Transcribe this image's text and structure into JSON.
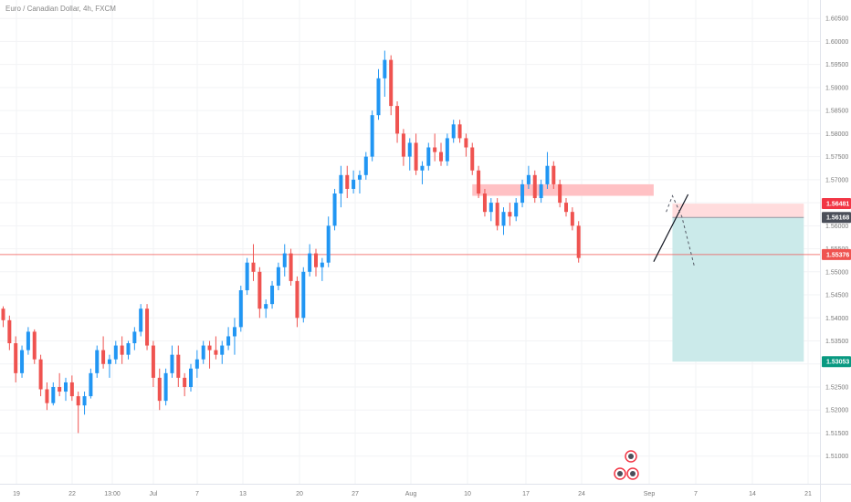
{
  "header": {
    "title": "Euro / Canadian Dollar, 4h, FXCM"
  },
  "colors": {
    "up": "#2196f3",
    "down": "#ef5350",
    "resistance_zone": "#ffc1c4",
    "stop_zone": "#ffdcdd",
    "target_zone": "#cbeaea",
    "support_line": "#ef5350",
    "badge_red": "#f23645",
    "badge_gray": "#4a4e59",
    "badge_teal": "#089981"
  },
  "chart_data": {
    "type": "candlestick",
    "title": "Euro / Canadian Dollar, 4h, FXCM",
    "xlabel": "",
    "ylabel": "",
    "ylim": [
      1.504,
      1.609
    ],
    "y_ticks": [
      "1.60500",
      "1.60000",
      "1.59500",
      "1.59000",
      "1.58500",
      "1.58000",
      "1.57500",
      "1.57000",
      "1.56500",
      "1.56000",
      "1.55500",
      "1.55000",
      "1.54500",
      "1.54000",
      "1.53500",
      "1.53000",
      "1.52500",
      "1.52000",
      "1.51500",
      "1.51000"
    ],
    "x_ticks": [
      "19",
      "22",
      "13:00",
      "Jul",
      "7",
      "13",
      "20",
      "27",
      "Aug",
      "10",
      "17",
      "24",
      "Sep",
      "7",
      "14",
      "21"
    ],
    "price_labels": [
      "1.56481",
      "1.56168",
      "1.55376",
      "1.53053"
    ],
    "series": [
      {
        "values": [
          [
            1.542,
            1.5425,
            1.538,
            1.5395
          ],
          [
            1.5395,
            1.5405,
            1.533,
            1.5345
          ],
          [
            1.5345,
            1.536,
            1.526,
            1.528
          ],
          [
            1.528,
            1.534,
            1.527,
            1.533
          ],
          [
            1.533,
            1.538,
            1.532,
            1.537
          ],
          [
            1.537,
            1.5375,
            1.53,
            1.531
          ],
          [
            1.531,
            1.532,
            1.523,
            1.5245
          ],
          [
            1.5245,
            1.526,
            1.52,
            1.5215
          ],
          [
            1.5215,
            1.526,
            1.521,
            1.525
          ],
          [
            1.525,
            1.528,
            1.523,
            1.524
          ],
          [
            1.524,
            1.527,
            1.522,
            1.526
          ],
          [
            1.526,
            1.5275,
            1.522,
            1.523
          ],
          [
            1.523,
            1.524,
            1.515,
            1.521
          ],
          [
            1.521,
            1.524,
            1.519,
            1.523
          ],
          [
            1.523,
            1.529,
            1.5225,
            1.528
          ],
          [
            1.528,
            1.534,
            1.527,
            1.533
          ],
          [
            1.533,
            1.536,
            1.529,
            1.53
          ],
          [
            1.53,
            1.532,
            1.527,
            1.531
          ],
          [
            1.531,
            1.535,
            1.53,
            1.534
          ],
          [
            1.534,
            1.536,
            1.53,
            1.532
          ],
          [
            1.532,
            1.535,
            1.531,
            1.5345
          ],
          [
            1.5345,
            1.538,
            1.533,
            1.537
          ],
          [
            1.537,
            1.543,
            1.536,
            1.542
          ],
          [
            1.542,
            1.543,
            1.533,
            1.534
          ],
          [
            1.534,
            1.535,
            1.525,
            1.527
          ],
          [
            1.527,
            1.529,
            1.52,
            1.522
          ],
          [
            1.522,
            1.529,
            1.521,
            1.528
          ],
          [
            1.528,
            1.534,
            1.527,
            1.532
          ],
          [
            1.532,
            1.534,
            1.525,
            1.527
          ],
          [
            1.527,
            1.528,
            1.523,
            1.525
          ],
          [
            1.525,
            1.53,
            1.524,
            1.529
          ],
          [
            1.529,
            1.533,
            1.527,
            1.531
          ],
          [
            1.531,
            1.535,
            1.53,
            1.534
          ],
          [
            1.534,
            1.535,
            1.529,
            1.533
          ],
          [
            1.533,
            1.536,
            1.531,
            1.532
          ],
          [
            1.532,
            1.535,
            1.53,
            1.534
          ],
          [
            1.534,
            1.538,
            1.533,
            1.536
          ],
          [
            1.536,
            1.54,
            1.532,
            1.538
          ],
          [
            1.538,
            1.547,
            1.537,
            1.546
          ],
          [
            1.546,
            1.553,
            1.545,
            1.552
          ],
          [
            1.552,
            1.556,
            1.548,
            1.55
          ],
          [
            1.55,
            1.551,
            1.54,
            1.542
          ],
          [
            1.542,
            1.544,
            1.54,
            1.543
          ],
          [
            1.543,
            1.548,
            1.542,
            1.547
          ],
          [
            1.547,
            1.552,
            1.546,
            1.551
          ],
          [
            1.551,
            1.556,
            1.549,
            1.554
          ],
          [
            1.554,
            1.555,
            1.547,
            1.548
          ],
          [
            1.548,
            1.549,
            1.538,
            1.54
          ],
          [
            1.54,
            1.551,
            1.539,
            1.55
          ],
          [
            1.55,
            1.556,
            1.549,
            1.554
          ],
          [
            1.554,
            1.555,
            1.549,
            1.551
          ],
          [
            1.551,
            1.553,
            1.548,
            1.552
          ],
          [
            1.552,
            1.562,
            1.551,
            1.56
          ],
          [
            1.56,
            1.568,
            1.559,
            1.567
          ],
          [
            1.567,
            1.573,
            1.564,
            1.571
          ],
          [
            1.571,
            1.573,
            1.566,
            1.568
          ],
          [
            1.568,
            1.572,
            1.567,
            1.57
          ],
          [
            1.57,
            1.572,
            1.567,
            1.571
          ],
          [
            1.571,
            1.576,
            1.57,
            1.575
          ],
          [
            1.575,
            1.585,
            1.574,
            1.584
          ],
          [
            1.584,
            1.594,
            1.583,
            1.592
          ],
          [
            1.592,
            1.598,
            1.588,
            1.596
          ],
          [
            1.596,
            1.597,
            1.584,
            1.586
          ],
          [
            1.586,
            1.587,
            1.578,
            1.58
          ],
          [
            1.58,
            1.581,
            1.573,
            1.575
          ],
          [
            1.575,
            1.579,
            1.572,
            1.578
          ],
          [
            1.578,
            1.58,
            1.571,
            1.572
          ],
          [
            1.572,
            1.574,
            1.569,
            1.573
          ],
          [
            1.573,
            1.578,
            1.572,
            1.577
          ],
          [
            1.577,
            1.58,
            1.574,
            1.576
          ],
          [
            1.576,
            1.578,
            1.573,
            1.574
          ],
          [
            1.574,
            1.58,
            1.573,
            1.579
          ],
          [
            1.579,
            1.583,
            1.578,
            1.582
          ],
          [
            1.582,
            1.583,
            1.578,
            1.579
          ],
          [
            1.579,
            1.58,
            1.575,
            1.577
          ],
          [
            1.577,
            1.578,
            1.571,
            1.572
          ],
          [
            1.572,
            1.573,
            1.566,
            1.567
          ],
          [
            1.567,
            1.568,
            1.562,
            1.563
          ],
          [
            1.563,
            1.566,
            1.561,
            1.565
          ],
          [
            1.565,
            1.566,
            1.559,
            1.56
          ],
          [
            1.56,
            1.564,
            1.558,
            1.563
          ],
          [
            1.563,
            1.565,
            1.56,
            1.562
          ],
          [
            1.562,
            1.566,
            1.561,
            1.565
          ],
          [
            1.565,
            1.57,
            1.564,
            1.569
          ],
          [
            1.569,
            1.573,
            1.568,
            1.571
          ],
          [
            1.571,
            1.572,
            1.565,
            1.566
          ],
          [
            1.566,
            1.57,
            1.565,
            1.569
          ],
          [
            1.569,
            1.576,
            1.568,
            1.573
          ],
          [
            1.573,
            1.574,
            1.568,
            1.569
          ],
          [
            1.569,
            1.57,
            1.564,
            1.565
          ],
          [
            1.565,
            1.566,
            1.562,
            1.563
          ],
          [
            1.563,
            1.564,
            1.559,
            1.56
          ],
          [
            1.56,
            1.561,
            1.552,
            1.553
          ]
        ]
      }
    ],
    "zones": [
      {
        "label": "resistance",
        "x1": 75,
        "x2": 104,
        "y1": 1.5665,
        "y2": 1.569
      },
      {
        "label": "stop",
        "x1": 107,
        "x2": 128,
        "y1": 1.5618,
        "y2": 1.5648
      },
      {
        "label": "target",
        "x1": 107,
        "x2": 128,
        "y1": 1.5305,
        "y2": 1.5618
      }
    ],
    "horizontal_line": 1.55376,
    "trend_line": {
      "x1": 104,
      "y1": 1.5522,
      "x2": 109.5,
      "y2": 1.5668
    },
    "projection": [
      [
        106,
        1.563
      ],
      [
        107,
        1.5665
      ],
      [
        108.5,
        1.562
      ],
      [
        110.5,
        1.5512
      ]
    ]
  },
  "icons": [
    "event-flag-icon-1",
    "event-flag-icon-2",
    "event-flag-icon-3"
  ]
}
